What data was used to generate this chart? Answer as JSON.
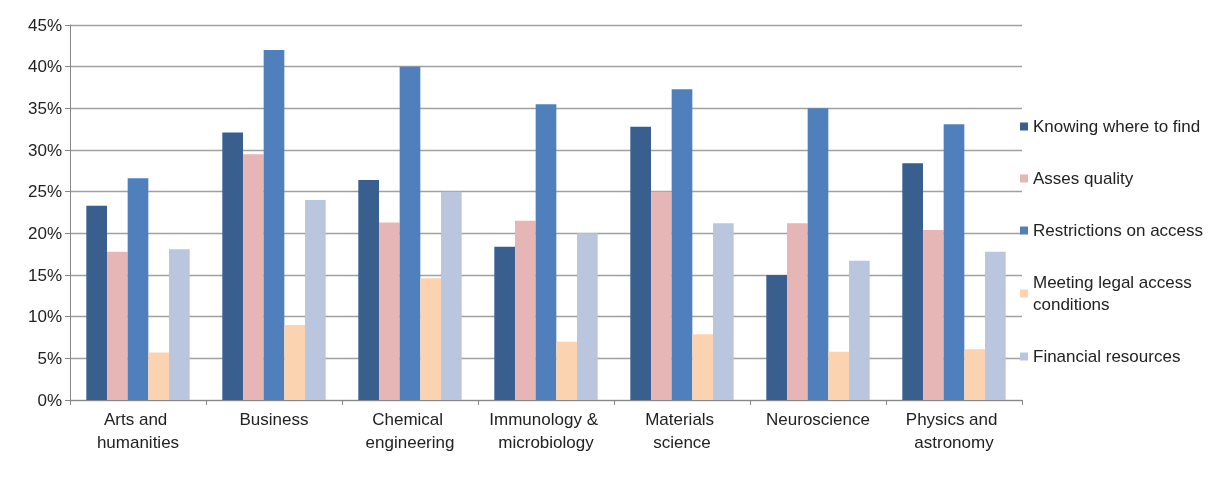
{
  "chart_data": {
    "type": "bar",
    "categories": [
      "Arts and humanities",
      "Business",
      "Chemical engineering",
      "Immunology & microbiology",
      "Materials science",
      "Neuroscience",
      "Physics and astronomy"
    ],
    "series": [
      {
        "name": "Knowing where to find",
        "color": "#385f8e",
        "values": [
          23.3,
          32.1,
          26.4,
          18.4,
          32.8,
          15.0,
          28.4
        ]
      },
      {
        "name": "Asses quality",
        "color": "#e6b5b5",
        "values": [
          17.8,
          29.5,
          21.3,
          21.5,
          25.0,
          21.2,
          20.4
        ]
      },
      {
        "name": "Restrictions on access",
        "color": "#4f80bc",
        "values": [
          26.6,
          42.0,
          40.0,
          35.5,
          37.3,
          35.0,
          33.1
        ]
      },
      {
        "name": "Meeting legal access conditions",
        "color": "#fbd3b0",
        "values": [
          5.7,
          9.0,
          14.6,
          7.0,
          7.9,
          5.8,
          6.1
        ]
      },
      {
        "name": "Financial resources",
        "color": "#b9c6de",
        "values": [
          18.1,
          24.0,
          25.0,
          20.0,
          21.2,
          16.7,
          17.8
        ]
      }
    ],
    "ylim": [
      0,
      45
    ],
    "yticks": [
      {
        "value": 0,
        "label": "0%"
      },
      {
        "value": 5,
        "label": "5%"
      },
      {
        "value": 10,
        "label": "10%"
      },
      {
        "value": 15,
        "label": "15%"
      },
      {
        "value": 20,
        "label": "20%"
      },
      {
        "value": 25,
        "label": "25%"
      },
      {
        "value": 30,
        "label": "30%"
      },
      {
        "value": 35,
        "label": "35%"
      },
      {
        "value": 40,
        "label": "40%"
      },
      {
        "value": 45,
        "label": "45%"
      }
    ],
    "grid": "y",
    "legend": "right"
  }
}
